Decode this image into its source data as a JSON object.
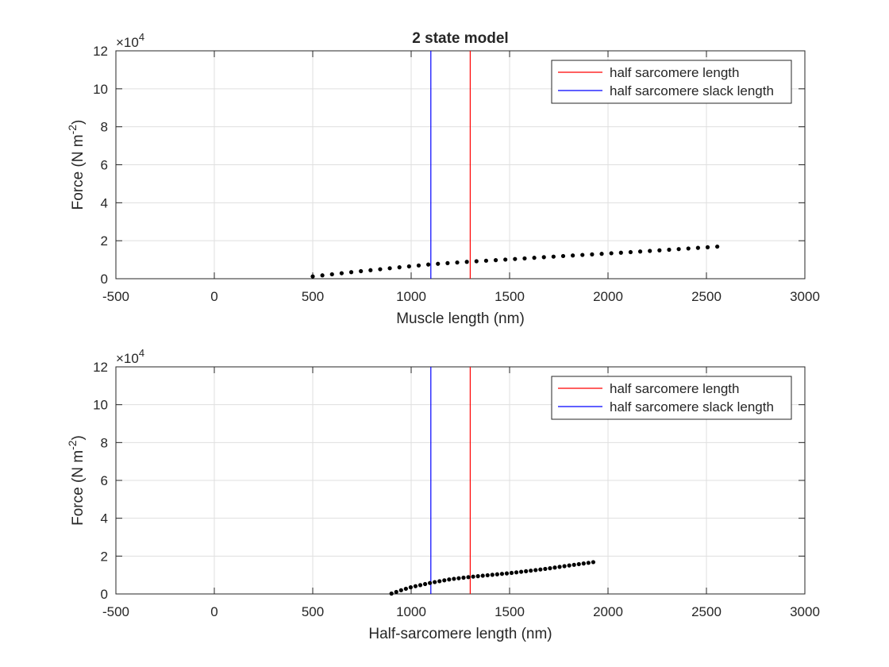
{
  "figure_title": "2 state model",
  "chart_data": [
    {
      "type": "scatter",
      "title": "2 state model",
      "xlabel": "Muscle length (nm)",
      "ylabel": "Force (N m^-2)",
      "ylabel_base": "Force (N m",
      "ylabel_exp": "-2",
      "ylabel_close": ")",
      "y_multiplier_base": "×10",
      "y_multiplier_exp": "4",
      "xlim": [
        -500,
        3000
      ],
      "ylim": [
        0,
        120000
      ],
      "xticks": [
        -500,
        0,
        500,
        1000,
        1500,
        2000,
        2500,
        3000
      ],
      "xtick_labels": [
        "-500",
        "0",
        "500",
        "1000",
        "1500",
        "2000",
        "2500",
        "3000"
      ],
      "yticks": [
        0,
        20000,
        40000,
        60000,
        80000,
        100000,
        120000
      ],
      "ytick_labels": [
        "0",
        "2",
        "4",
        "6",
        "8",
        "10",
        "12"
      ],
      "grid": true,
      "legend_position": "top-right",
      "vlines": [
        {
          "name": "half sarcomere length",
          "x": 1300,
          "color": "#ff0000"
        },
        {
          "name": "half sarcomere slack length",
          "x": 1100,
          "color": "#0000ff"
        }
      ],
      "series": [
        {
          "color": "#000000",
          "x0": 500,
          "x1": 2555,
          "n": 43,
          "values_pts": [
            [
              500,
              1200
            ],
            [
              700,
              3500
            ],
            [
              900,
              5600
            ],
            [
              1100,
              7600
            ],
            [
              1300,
              9000
            ],
            [
              1500,
              10200
            ],
            [
              1700,
              11500
            ],
            [
              1900,
              12700
            ],
            [
              2100,
              13900
            ],
            [
              2300,
              15200
            ],
            [
              2555,
              16900
            ]
          ]
        }
      ]
    },
    {
      "type": "scatter",
      "xlabel": "Half-sarcomere length (nm)",
      "ylabel": "Force (N m^-2)",
      "ylabel_base": "Force (N m",
      "ylabel_exp": "-2",
      "ylabel_close": ")",
      "y_multiplier_base": "×10",
      "y_multiplier_exp": "4",
      "xlim": [
        -500,
        3000
      ],
      "ylim": [
        0,
        120000
      ],
      "xticks": [
        -500,
        0,
        500,
        1000,
        1500,
        2000,
        2500,
        3000
      ],
      "xtick_labels": [
        "-500",
        "0",
        "500",
        "1000",
        "1500",
        "2000",
        "2500",
        "3000"
      ],
      "yticks": [
        0,
        20000,
        40000,
        60000,
        80000,
        100000,
        120000
      ],
      "ytick_labels": [
        "0",
        "2",
        "4",
        "6",
        "8",
        "10",
        "12"
      ],
      "grid": true,
      "legend_position": "top-right",
      "vlines": [
        {
          "name": "half sarcomere length",
          "x": 1300,
          "color": "#ff0000"
        },
        {
          "name": "half sarcomere slack length",
          "x": 1100,
          "color": "#0000ff"
        }
      ],
      "series": [
        {
          "color": "#000000",
          "x0": 900,
          "x1": 1925,
          "n": 43,
          "values_pts": [
            [
              900,
              200
            ],
            [
              950,
              2000
            ],
            [
              1000,
              3600
            ],
            [
              1100,
              5900
            ],
            [
              1200,
              7800
            ],
            [
              1300,
              9000
            ],
            [
              1400,
              10000
            ],
            [
              1500,
              11000
            ],
            [
              1600,
              12200
            ],
            [
              1700,
              13500
            ],
            [
              1800,
              15000
            ],
            [
              1925,
              16800
            ]
          ]
        }
      ]
    }
  ]
}
